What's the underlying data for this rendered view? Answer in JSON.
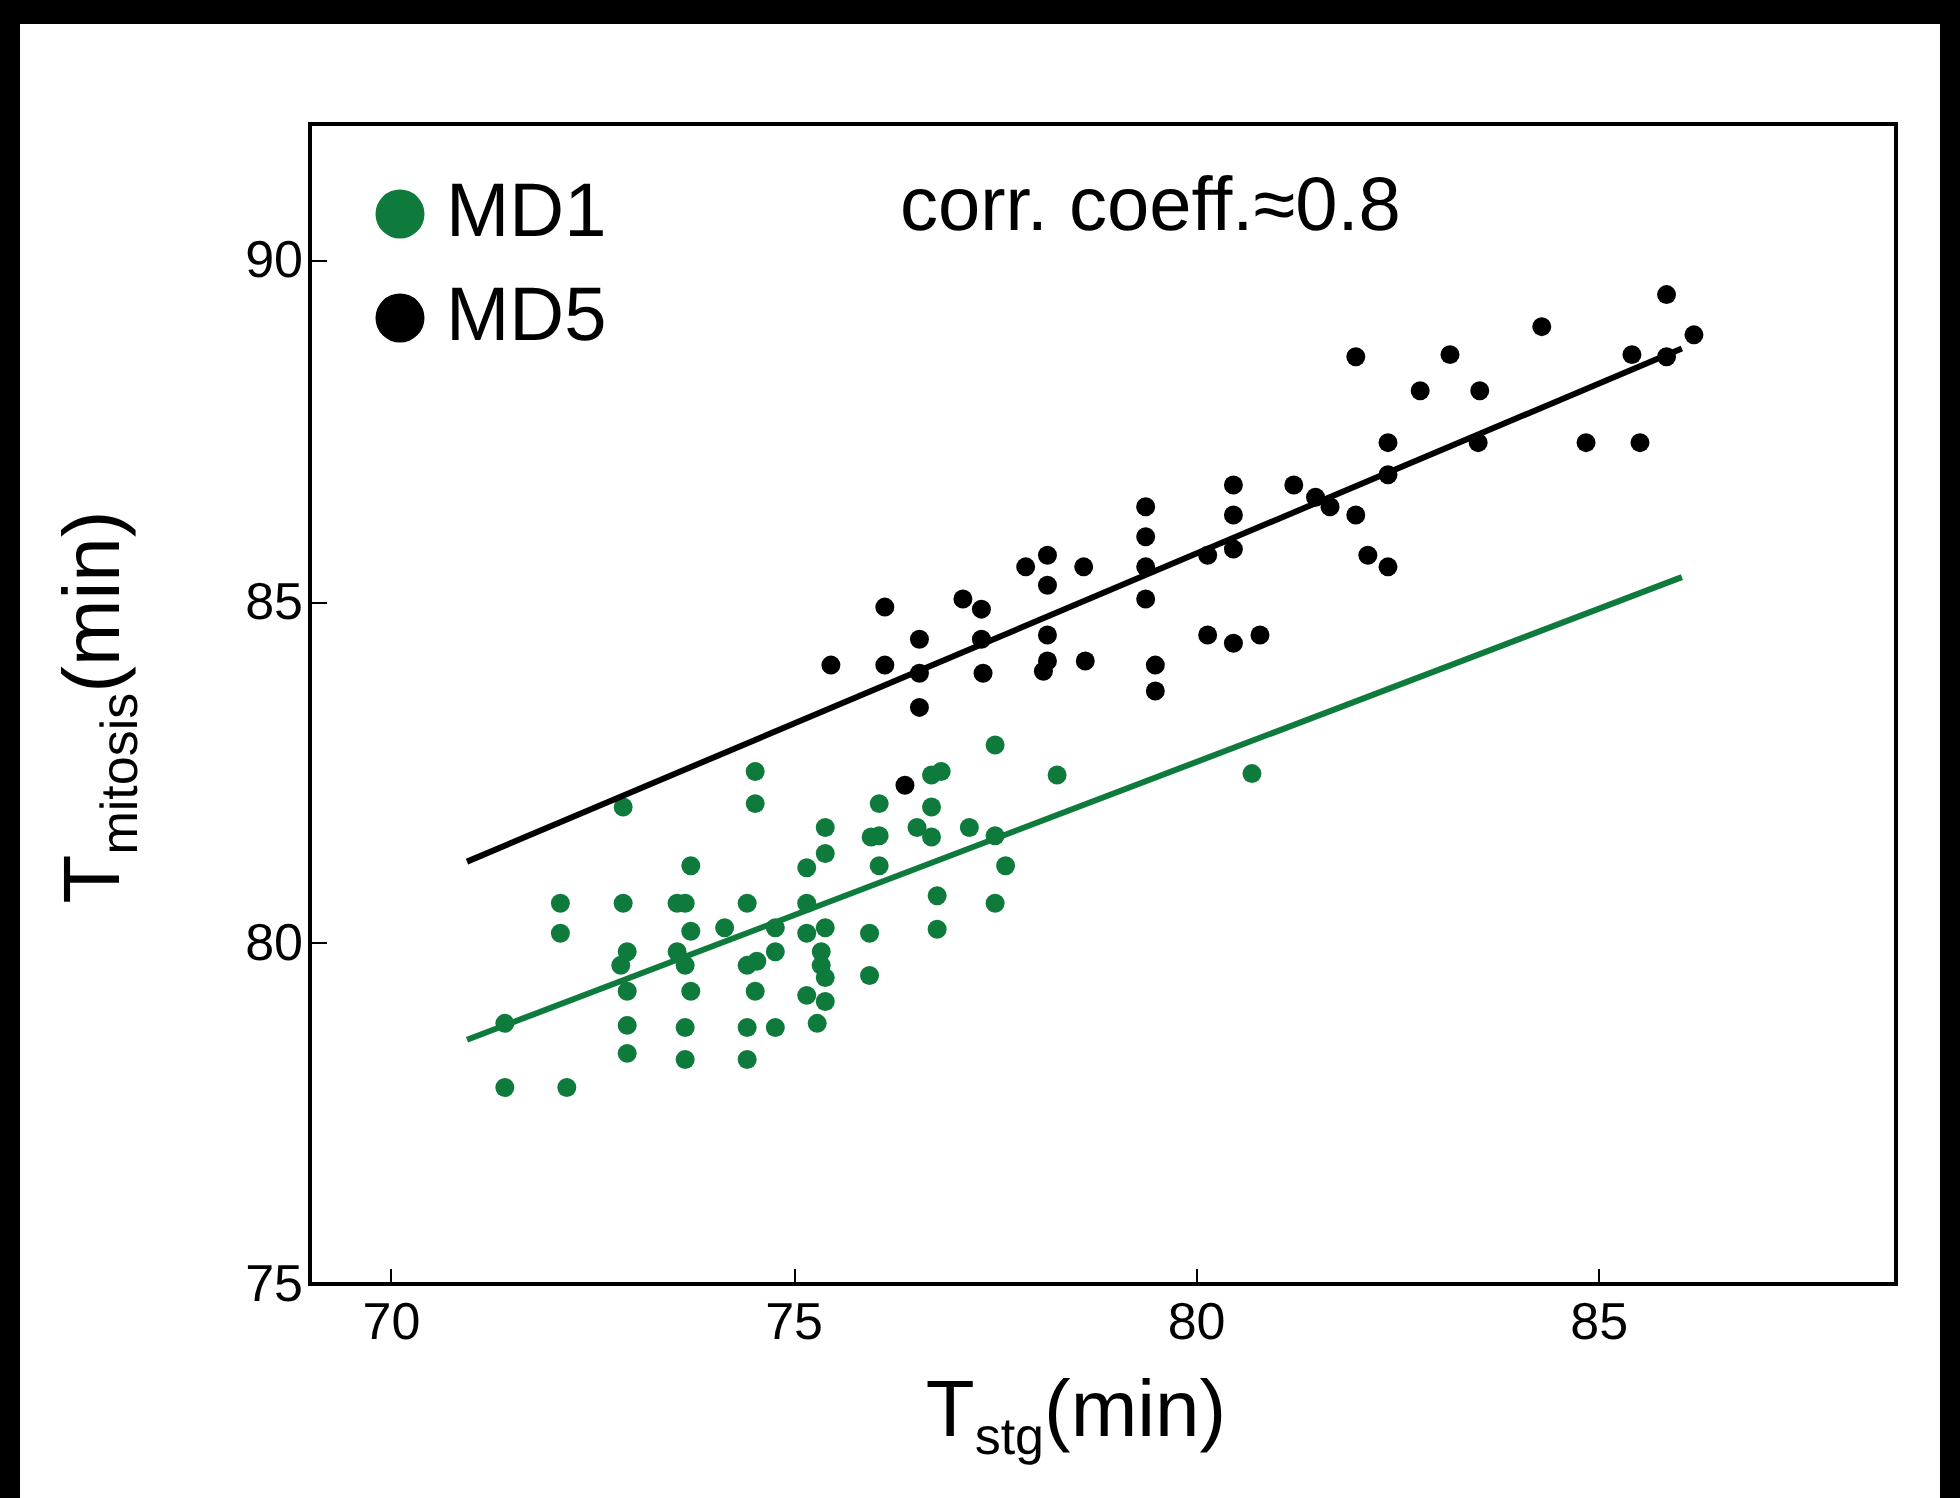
{
  "chart_data": {
    "type": "scatter",
    "xlabel": "T$_{stg}$(min)",
    "ylabel": "T$_{mitosis}$(min)",
    "annotations": [
      "corr. coeff.≈0.8"
    ],
    "xlim": [
      69,
      88.7
    ],
    "ylim": [
      75,
      92
    ],
    "xticks": [
      70,
      75,
      80,
      85
    ],
    "yticks": [
      75,
      80,
      85,
      90
    ],
    "grid": false,
    "legend": "top left",
    "series": [
      {
        "name": "MD1",
        "color": "#0e7a3c",
        "marker": "circle",
        "x": [
          71.42,
          71.42,
          72.11,
          72.11,
          72.19,
          72.89,
          72.89,
          72.94,
          72.86,
          72.94,
          72.94,
          72.94,
          73.73,
          73.56,
          73.66,
          73.73,
          73.56,
          73.66,
          73.73,
          73.66,
          73.66,
          74.15,
          74.43,
          74.43,
          74.55,
          74.53,
          74.43,
          74.43,
          74.53,
          74.53,
          74.78,
          74.78,
          74.78,
          75.17,
          75.17,
          75.17,
          75.4,
          75.4,
          75.4,
          75.35,
          75.35,
          75.4,
          75.17,
          75.4,
          75.3,
          75.95,
          75.95,
          76.07,
          75.97,
          76.07,
          76.07,
          76.72,
          76.84,
          76.72,
          76.54,
          76.72,
          76.79,
          76.79,
          77.51,
          77.19,
          77.51,
          77.64,
          77.51,
          78.28,
          80.7
        ],
        "values": [
          78.82,
          77.88,
          80.58,
          80.14,
          77.88,
          81.99,
          80.58,
          79.87,
          79.67,
          79.29,
          78.79,
          78.38,
          81.13,
          80.58,
          80.58,
          80.17,
          79.87,
          79.67,
          79.29,
          78.76,
          78.29,
          80.22,
          80.58,
          79.67,
          79.73,
          79.29,
          78.76,
          78.29,
          82.51,
          82.04,
          80.22,
          79.87,
          78.76,
          81.1,
          80.58,
          80.14,
          81.69,
          81.31,
          80.22,
          79.87,
          79.67,
          79.49,
          79.23,
          79.14,
          78.82,
          80.14,
          79.52,
          82.04,
          81.55,
          81.57,
          81.13,
          82.46,
          82.51,
          81.99,
          81.69,
          81.55,
          80.69,
          80.2,
          82.9,
          81.69,
          81.57,
          81.13,
          80.58,
          82.46,
          82.48
        ]
      },
      {
        "name": "MD5",
        "color": "#000000",
        "marker": "circle",
        "x": [
          76.14,
          76.57,
          77.11,
          77.34,
          77.34,
          77.89,
          78.16,
          78.16,
          78.61,
          79.38,
          79.38,
          79.38,
          79.38,
          80.15,
          80.47,
          80.47,
          80.47,
          81.22,
          81.49,
          81.67,
          81.99,
          81.99,
          82.14,
          82.39,
          82.39,
          82.39,
          82.79,
          83.16,
          83.53,
          83.51,
          84.3,
          84.85,
          85.42,
          85.52,
          85.85,
          85.85,
          86.19,
          75.47,
          76.14,
          76.57,
          76.57,
          77.36,
          78.16,
          78.16,
          78.11,
          78.63,
          79.5,
          79.5,
          80.15,
          80.47,
          80.8,
          76.39
        ],
        "values": [
          84.92,
          84.45,
          85.04,
          84.89,
          84.45,
          85.51,
          85.68,
          85.24,
          85.51,
          86.39,
          85.95,
          85.51,
          85.04,
          85.68,
          86.71,
          86.27,
          85.77,
          86.71,
          86.53,
          86.39,
          88.59,
          86.27,
          85.68,
          85.51,
          87.33,
          86.86,
          88.09,
          88.62,
          88.09,
          87.33,
          89.03,
          87.33,
          88.62,
          87.33,
          89.5,
          88.59,
          88.91,
          84.07,
          84.07,
          83.95,
          83.45,
          83.95,
          84.51,
          84.13,
          83.98,
          84.13,
          84.07,
          83.69,
          84.51,
          84.39,
          84.51,
          82.31
        ]
      },
      {
        "type": "line",
        "color": "#0e7a3c",
        "x": [
          70.95,
          86.04
        ],
        "values": [
          78.58,
          85.36
        ]
      },
      {
        "type": "line",
        "color": "#000000",
        "x": [
          70.95,
          86.04
        ],
        "values": [
          81.19,
          88.71
        ]
      }
    ]
  }
}
